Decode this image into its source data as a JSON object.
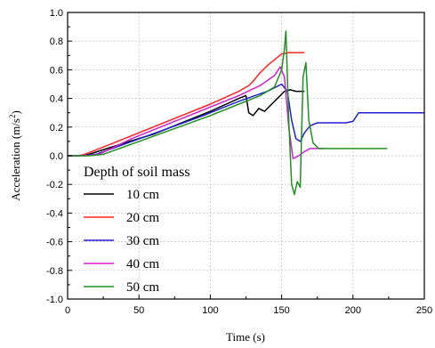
{
  "chart_data": {
    "type": "line",
    "xlabel": "Time (s)",
    "ylabel_text": "Acceleration (m/s",
    "ylabel_sup": "2",
    "ylabel_close": ")",
    "xlim": [
      0,
      250
    ],
    "ylim": [
      -1.0,
      1.0
    ],
    "x_ticks": [
      "0",
      "50",
      "100",
      "150",
      "200",
      "250"
    ],
    "y_ticks": [
      "-1.0",
      "-0.8",
      "-0.6",
      "-0.4",
      "-0.2",
      "0.0",
      "0.2",
      "0.4",
      "0.6",
      "0.8",
      "1.0"
    ],
    "grid": true,
    "legend_title": "Depth of soil mass",
    "legend_position": "bottom-left",
    "series": [
      {
        "name": "10 cm",
        "color": "#000000",
        "points": [
          [
            0,
            0
          ],
          [
            8,
            0
          ],
          [
            15,
            0.01
          ],
          [
            40,
            0.09
          ],
          [
            60,
            0.15
          ],
          [
            80,
            0.23
          ],
          [
            100,
            0.31
          ],
          [
            120,
            0.4
          ],
          [
            125,
            0.42
          ],
          [
            127,
            0.3
          ],
          [
            130,
            0.28
          ],
          [
            134,
            0.33
          ],
          [
            138,
            0.31
          ],
          [
            142,
            0.35
          ],
          [
            147,
            0.4
          ],
          [
            152,
            0.45
          ],
          [
            156,
            0.46
          ],
          [
            160,
            0.45
          ],
          [
            166,
            0.45
          ]
        ]
      },
      {
        "name": "20 cm",
        "color": "#ff2020",
        "points": [
          [
            0,
            0
          ],
          [
            8,
            0
          ],
          [
            12,
            0.01
          ],
          [
            30,
            0.08
          ],
          [
            50,
            0.16
          ],
          [
            75,
            0.26
          ],
          [
            100,
            0.36
          ],
          [
            120,
            0.45
          ],
          [
            127,
            0.49
          ],
          [
            130,
            0.52
          ],
          [
            135,
            0.58
          ],
          [
            140,
            0.63
          ],
          [
            145,
            0.67
          ],
          [
            150,
            0.71
          ],
          [
            155,
            0.72
          ],
          [
            160,
            0.72
          ],
          [
            166,
            0.72
          ]
        ]
      },
      {
        "name": "30 cm",
        "color": "#2020d0",
        "points": [
          [
            0,
            0
          ],
          [
            10,
            0
          ],
          [
            20,
            0.01
          ],
          [
            45,
            0.1
          ],
          [
            70,
            0.19
          ],
          [
            95,
            0.28
          ],
          [
            120,
            0.38
          ],
          [
            140,
            0.45
          ],
          [
            150,
            0.5
          ],
          [
            154,
            0.45
          ],
          [
            157,
            0.25
          ],
          [
            160,
            0.12
          ],
          [
            163,
            0.1
          ],
          [
            166,
            0.16
          ],
          [
            170,
            0.21
          ],
          [
            175,
            0.23
          ],
          [
            185,
            0.23
          ],
          [
            195,
            0.23
          ],
          [
            200,
            0.24
          ],
          [
            204,
            0.3
          ],
          [
            210,
            0.3
          ],
          [
            225,
            0.3
          ],
          [
            250,
            0.3
          ]
        ]
      },
      {
        "name": "40 cm",
        "color": "#d020d0",
        "points": [
          [
            0,
            0
          ],
          [
            12,
            0
          ],
          [
            22,
            0.01
          ],
          [
            45,
            0.12
          ],
          [
            70,
            0.22
          ],
          [
            95,
            0.32
          ],
          [
            120,
            0.42
          ],
          [
            135,
            0.49
          ],
          [
            145,
            0.56
          ],
          [
            149,
            0.62
          ],
          [
            152,
            0.55
          ],
          [
            155,
            0.2
          ],
          [
            158,
            -0.02
          ],
          [
            162,
            0.0
          ],
          [
            166,
            0.03
          ],
          [
            170,
            0.05
          ],
          [
            180,
            0.05
          ]
        ]
      },
      {
        "name": "50 cm",
        "color": "#209020",
        "points": [
          [
            0,
            0
          ],
          [
            15,
            0
          ],
          [
            25,
            0.01
          ],
          [
            50,
            0.1
          ],
          [
            75,
            0.19
          ],
          [
            100,
            0.28
          ],
          [
            120,
            0.36
          ],
          [
            135,
            0.42
          ],
          [
            145,
            0.48
          ],
          [
            150,
            0.6
          ],
          [
            152,
            0.75
          ],
          [
            153,
            0.87
          ],
          [
            155,
            0.25
          ],
          [
            157,
            -0.2
          ],
          [
            159,
            -0.27
          ],
          [
            161,
            -0.18
          ],
          [
            163,
            -0.22
          ],
          [
            165,
            0.55
          ],
          [
            167,
            0.65
          ],
          [
            169,
            0.25
          ],
          [
            172,
            0.09
          ],
          [
            176,
            0.05
          ],
          [
            190,
            0.05
          ],
          [
            210,
            0.05
          ],
          [
            224,
            0.05
          ]
        ]
      }
    ]
  }
}
